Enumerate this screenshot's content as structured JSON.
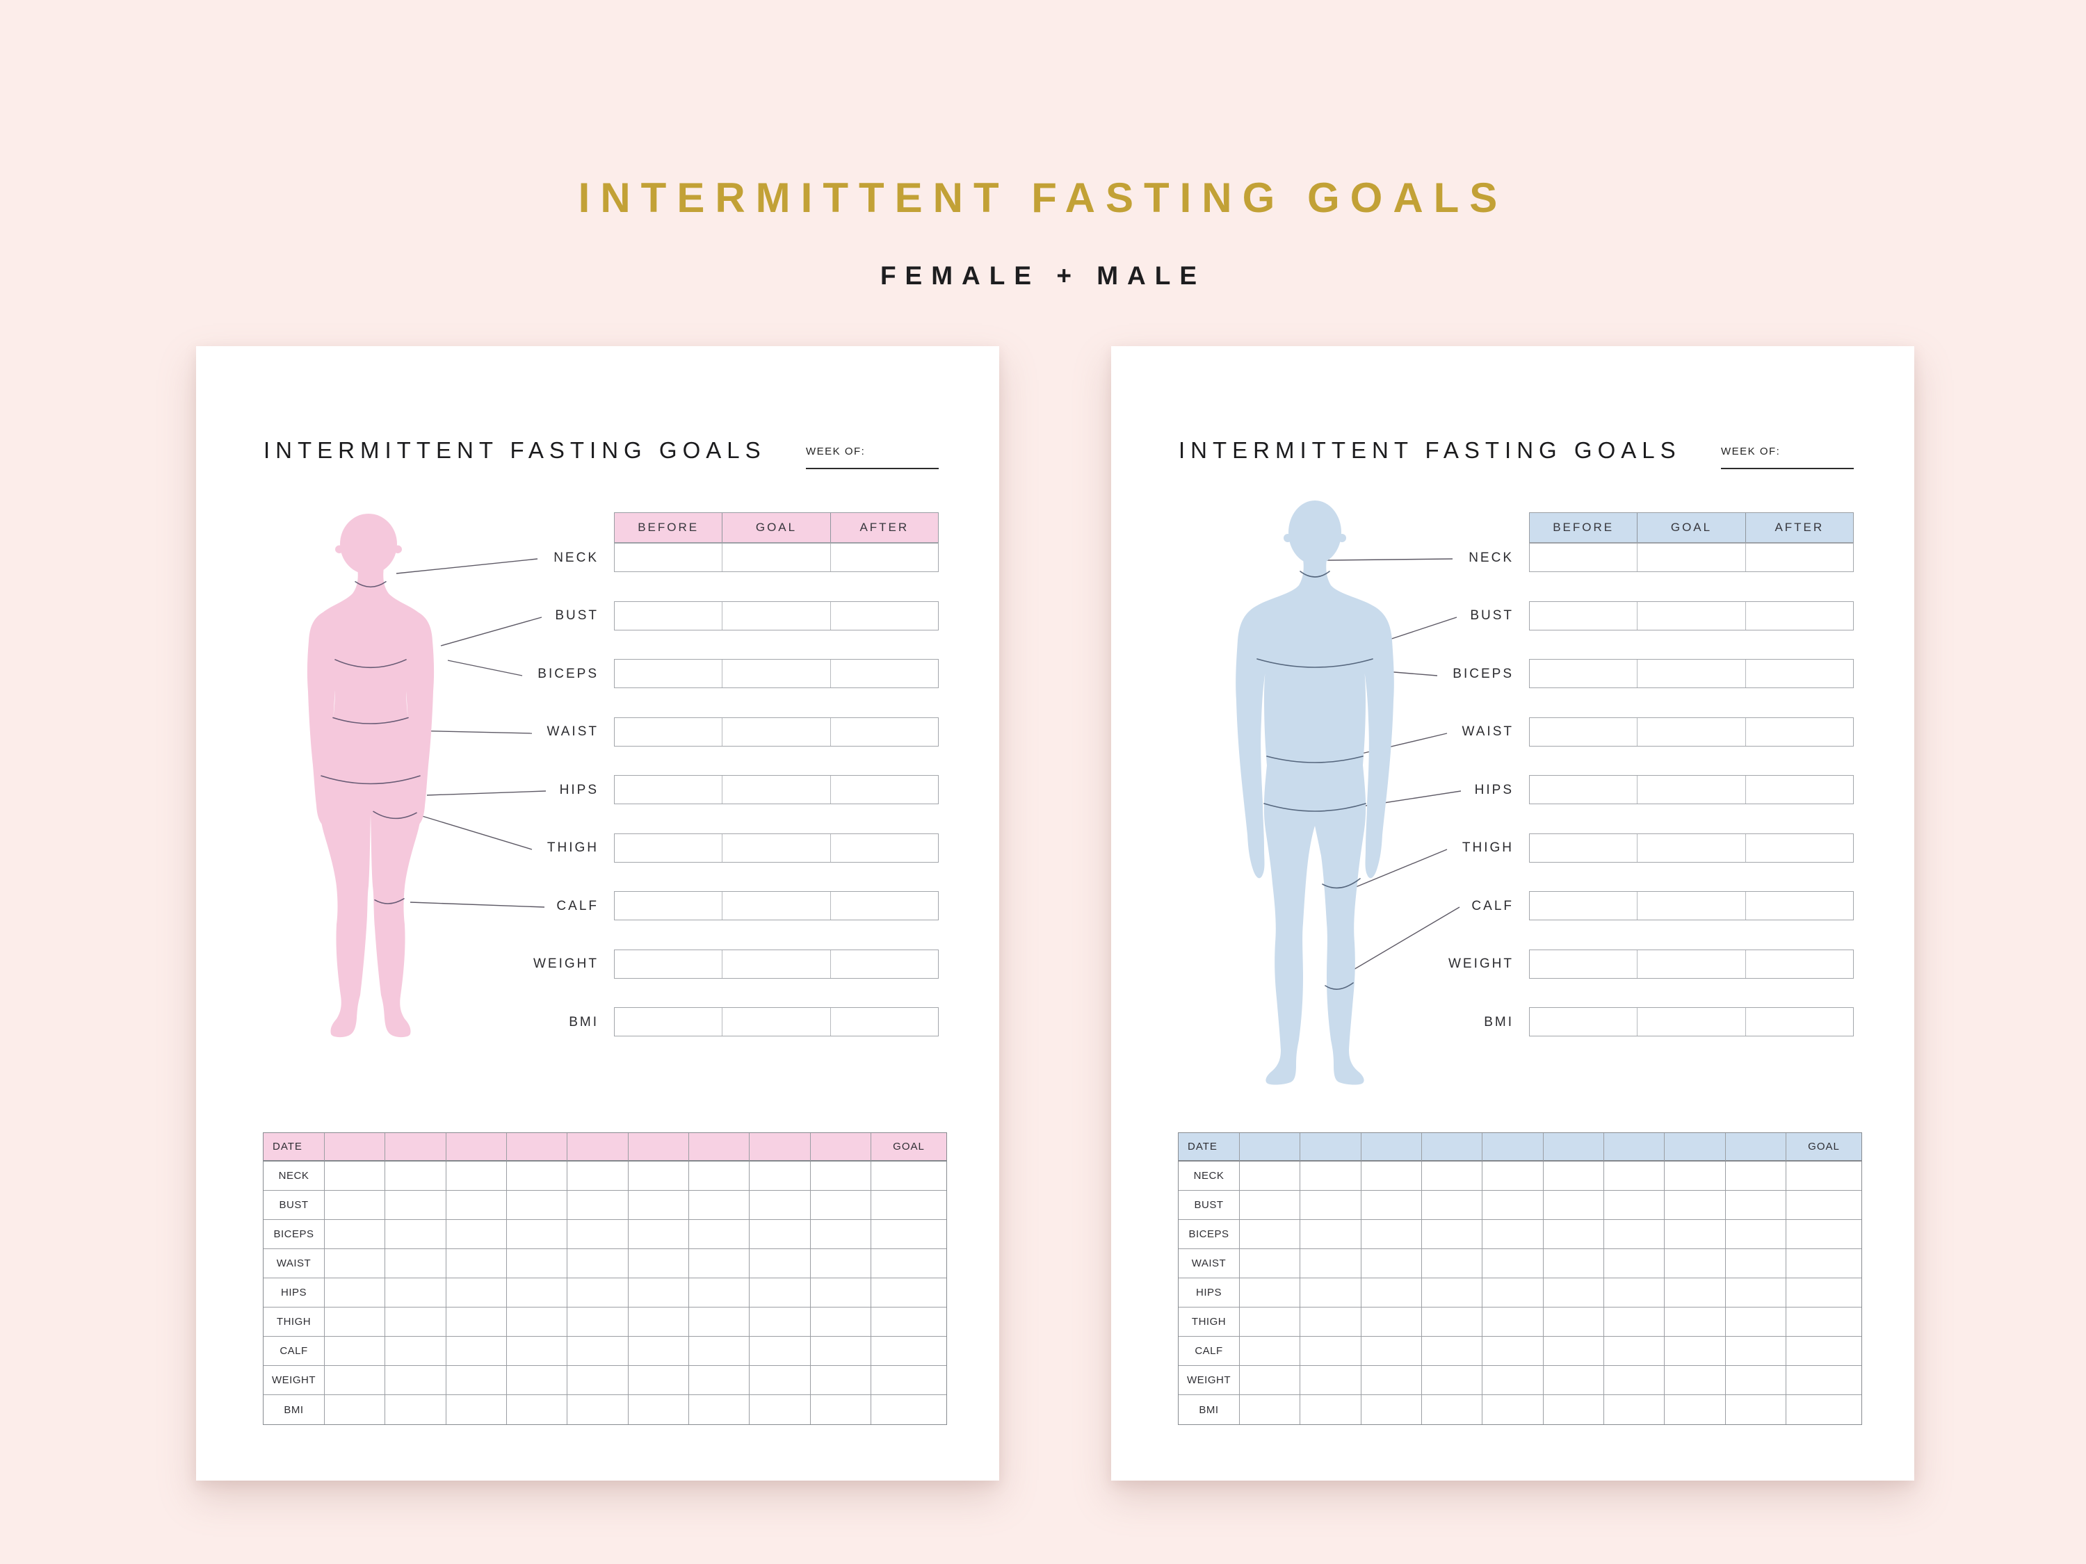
{
  "header": {
    "title": "INTERMITTENT FASTING GOALS",
    "subtitle": "FEMALE + MALE"
  },
  "colors": {
    "background": "#fcedea",
    "title_gold": "#c2a136",
    "female_accent": "#f7d1e3",
    "female_body": "#f5c8dc",
    "male_accent": "#ccddee",
    "male_body": "#c9dbec"
  },
  "pages": [
    {
      "variant": "female",
      "page_title": "INTERMITTENT FASTING GOALS",
      "week_of_label": "WEEK OF:",
      "measure_columns": [
        "BEFORE",
        "GOAL",
        "AFTER"
      ],
      "measurements": [
        "NECK",
        "BUST",
        "BICEPS",
        "WAIST",
        "HIPS",
        "THIGH",
        "CALF",
        "WEIGHT",
        "BMI"
      ],
      "log": {
        "date_label": "DATE",
        "goal_label": "GOAL",
        "day_columns": 9
      }
    },
    {
      "variant": "male",
      "page_title": "INTERMITTENT FASTING GOALS",
      "week_of_label": "WEEK OF:",
      "measure_columns": [
        "BEFORE",
        "GOAL",
        "AFTER"
      ],
      "measurements": [
        "NECK",
        "BUST",
        "BICEPS",
        "WAIST",
        "HIPS",
        "THIGH",
        "CALF",
        "WEIGHT",
        "BMI"
      ],
      "log": {
        "date_label": "DATE",
        "goal_label": "GOAL",
        "day_columns": 9
      }
    }
  ]
}
